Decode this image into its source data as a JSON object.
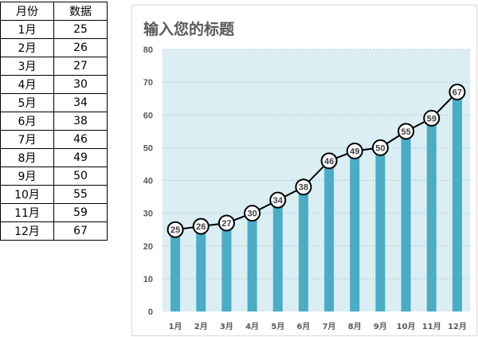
{
  "table": {
    "headers": [
      "月份",
      "数据"
    ],
    "rows": [
      [
        "1月",
        "25"
      ],
      [
        "2月",
        "26"
      ],
      [
        "3月",
        "27"
      ],
      [
        "4月",
        "30"
      ],
      [
        "5月",
        "34"
      ],
      [
        "6月",
        "38"
      ],
      [
        "7月",
        "46"
      ],
      [
        "8月",
        "49"
      ],
      [
        "9月",
        "50"
      ],
      [
        "10月",
        "55"
      ],
      [
        "11月",
        "59"
      ],
      [
        "12月",
        "67"
      ]
    ]
  },
  "chart_data": {
    "type": "bar",
    "title": "输入您的标题",
    "categories": [
      "1月",
      "2月",
      "3月",
      "4月",
      "5月",
      "6月",
      "7月",
      "8月",
      "9月",
      "10月",
      "11月",
      "12月"
    ],
    "series": [
      {
        "type": "bar",
        "values": [
          25,
          26,
          27,
          30,
          34,
          38,
          46,
          49,
          50,
          55,
          59,
          67
        ],
        "color": "#4bacc6"
      },
      {
        "type": "line",
        "values": [
          25,
          26,
          27,
          30,
          34,
          38,
          46,
          49,
          50,
          55,
          59,
          67
        ],
        "color": "#000000",
        "data_labels": true
      }
    ],
    "ylim": [
      0,
      80
    ],
    "yticks": [
      0,
      10,
      20,
      30,
      40,
      50,
      60,
      70,
      80
    ],
    "grid": true,
    "plot_background": "#daeef3"
  }
}
